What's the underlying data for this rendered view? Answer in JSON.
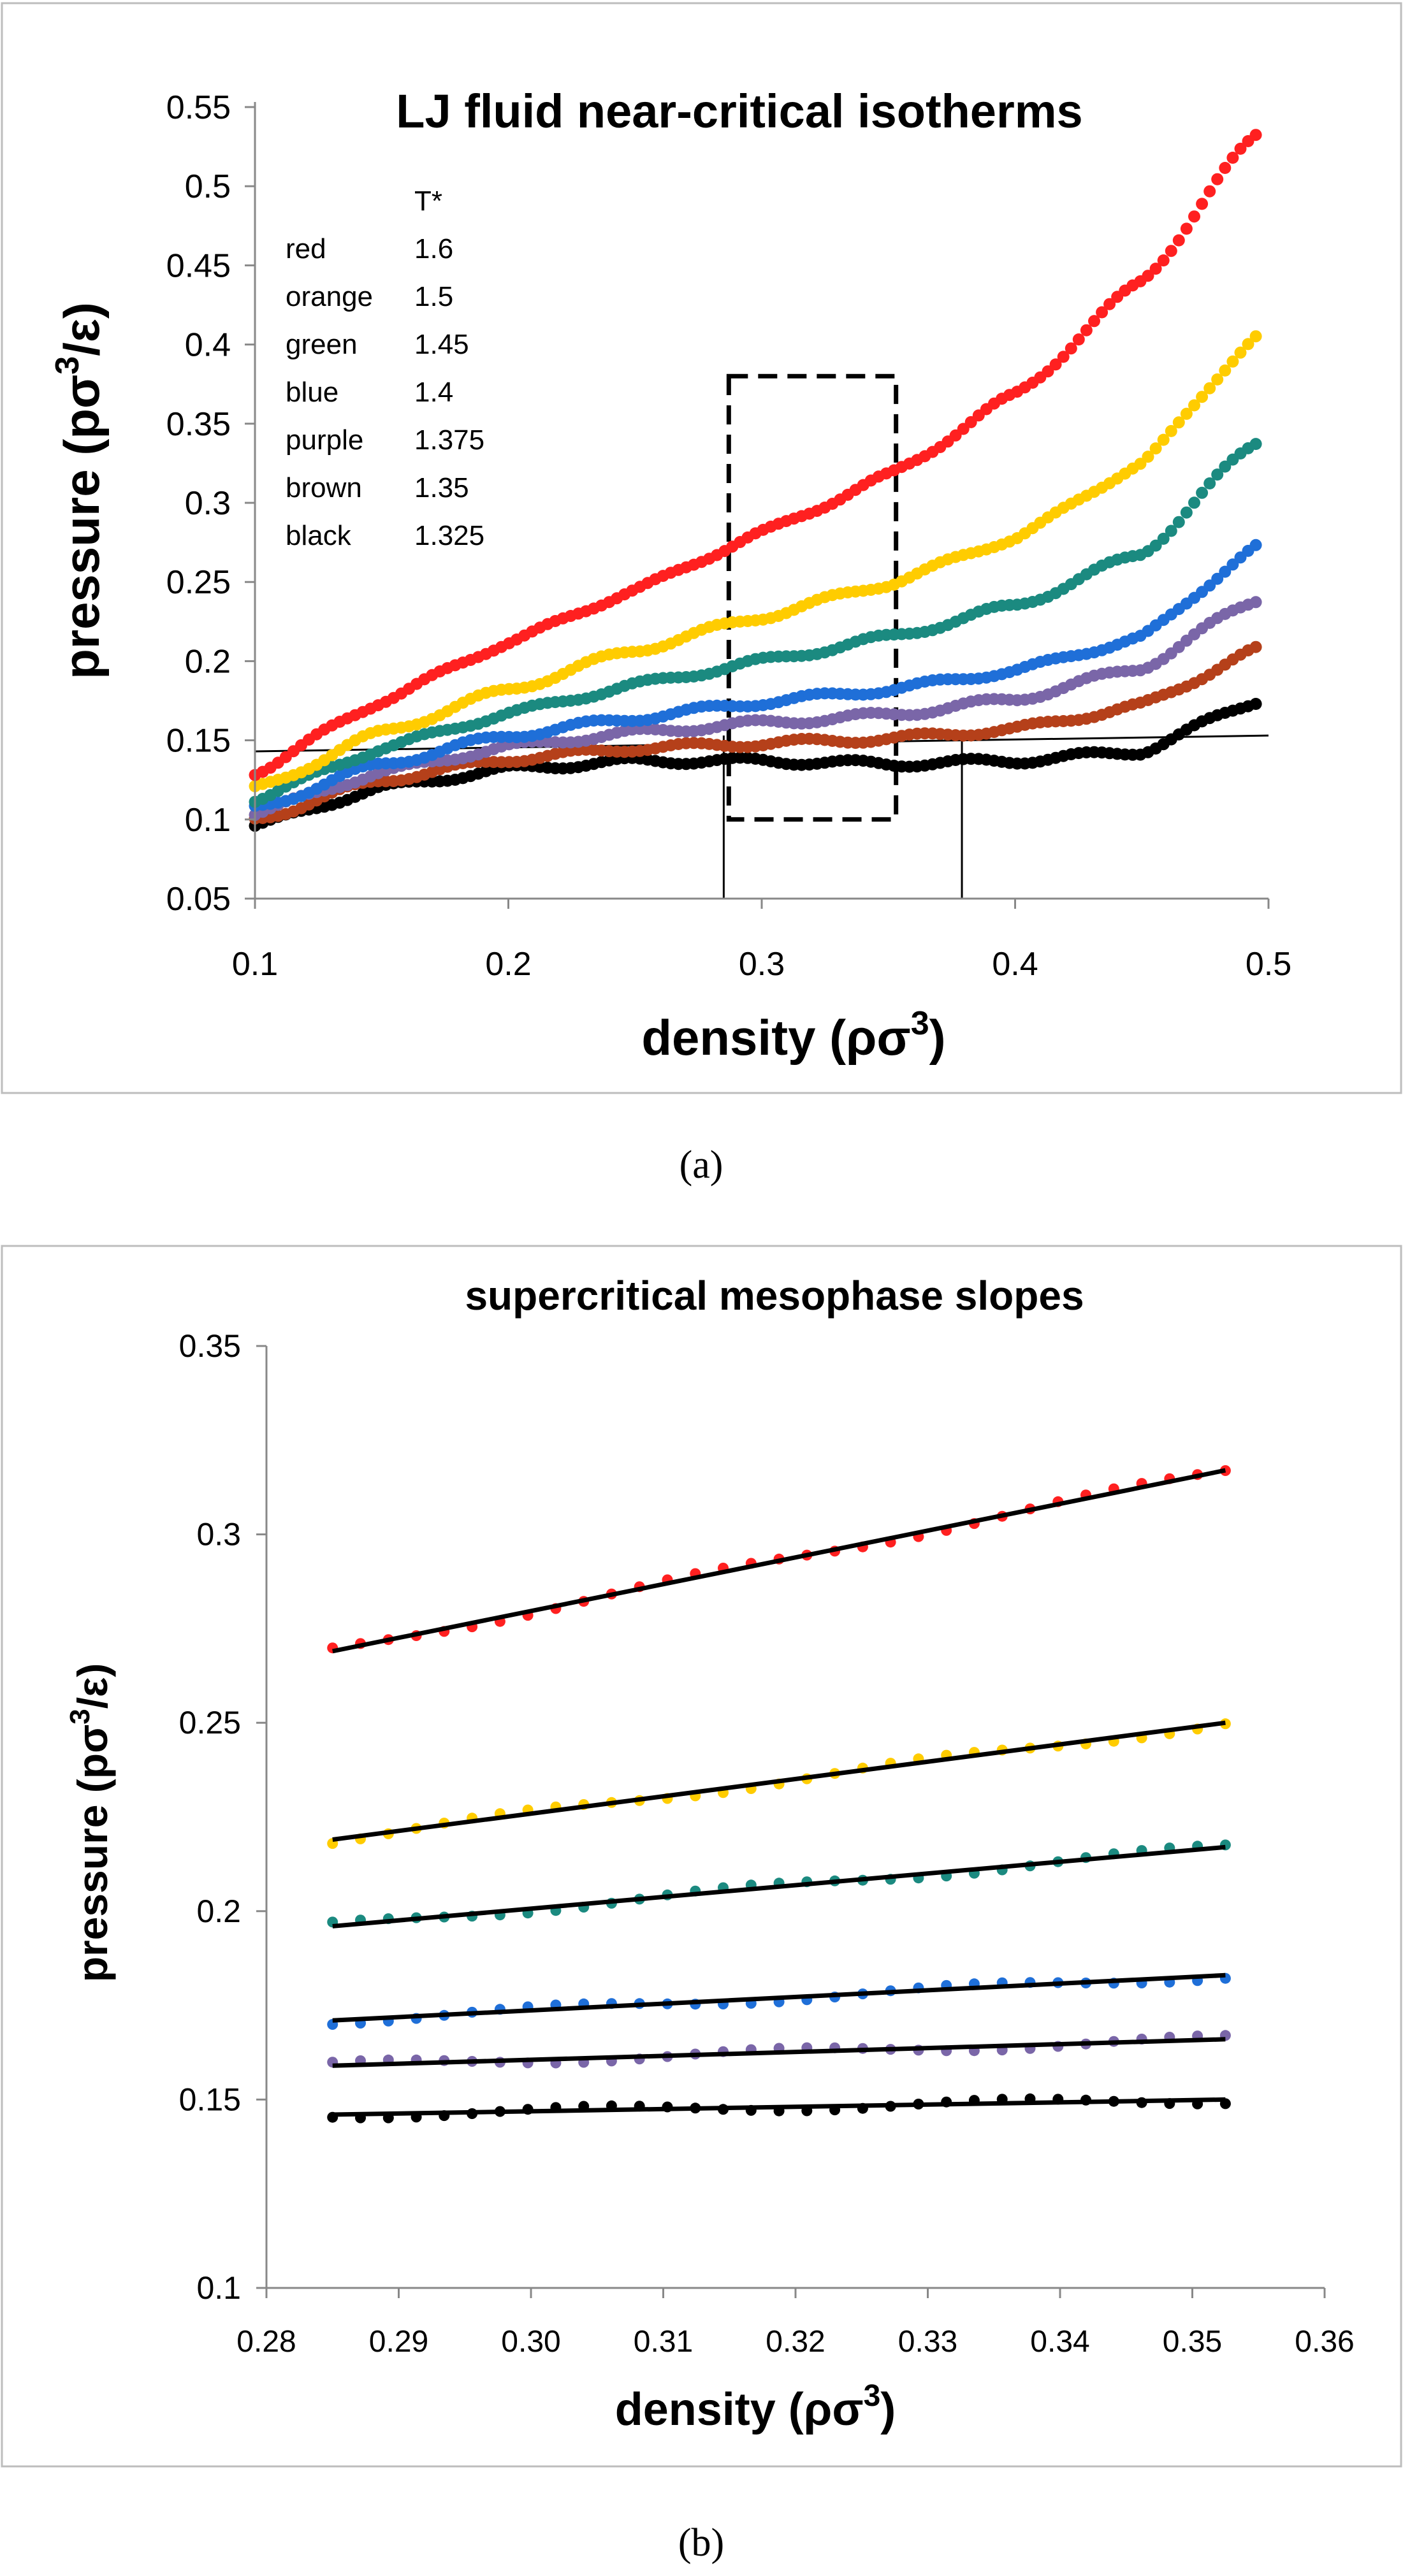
{
  "chart_data": [
    {
      "type": "scatter",
      "panel_label": "(a)",
      "title": "LJ fluid near-critical isotherms",
      "xlabel": "density (ρσ",
      "xlabel_sup": "3",
      "xlabel_end": ")",
      "ylabel": "pressure (pσ",
      "ylabel_sup": "3",
      "ylabel_end": "/ε)",
      "xlim": [
        0.1,
        0.5
      ],
      "ylim": [
        0.05,
        0.55
      ],
      "xticks": [
        "0.1",
        "0.2",
        "0.3",
        "0.4",
        "0.5"
      ],
      "yticks": [
        "0.05",
        "0.1",
        "0.15",
        "0.2",
        "0.25",
        "0.3",
        "0.35",
        "0.4",
        "0.45",
        "0.5",
        "0.55"
      ],
      "legend_header": "T*",
      "legend": [
        {
          "name": "red",
          "value": "1.6"
        },
        {
          "name": "orange",
          "value": "1.5"
        },
        {
          "name": "green",
          "value": "1.45"
        },
        {
          "name": "blue",
          "value": "1.4"
        },
        {
          "name": "purple",
          "value": "1.375"
        },
        {
          "name": "brown",
          "value": "1.35"
        },
        {
          "name": "black",
          "value": "1.325"
        }
      ],
      "series": [
        {
          "name": "red",
          "T": 1.6,
          "color": "#ff2020",
          "x": [
            0.1,
            0.15,
            0.2,
            0.25,
            0.3,
            0.35,
            0.4,
            0.45,
            0.495
          ],
          "y": [
            0.13,
            0.175,
            0.212,
            0.245,
            0.281,
            0.317,
            0.368,
            0.44,
            0.532
          ]
        },
        {
          "name": "orange",
          "T": 1.5,
          "color": "#ffcc00",
          "x": [
            0.1,
            0.15,
            0.2,
            0.25,
            0.3,
            0.35,
            0.4,
            0.45,
            0.495
          ],
          "y": [
            0.119,
            0.155,
            0.182,
            0.207,
            0.228,
            0.249,
            0.278,
            0.325,
            0.405
          ]
        },
        {
          "name": "green",
          "T": 1.45,
          "color": "#1b8a80",
          "x": [
            0.1,
            0.15,
            0.2,
            0.25,
            0.3,
            0.35,
            0.4,
            0.45,
            0.495
          ],
          "y": [
            0.113,
            0.145,
            0.167,
            0.185,
            0.2,
            0.215,
            0.235,
            0.268,
            0.338
          ]
        },
        {
          "name": "blue",
          "T": 1.4,
          "color": "#1f6fd8",
          "x": [
            0.1,
            0.15,
            0.2,
            0.25,
            0.3,
            0.35,
            0.4,
            0.45,
            0.495
          ],
          "y": [
            0.107,
            0.135,
            0.153,
            0.164,
            0.174,
            0.182,
            0.194,
            0.215,
            0.272
          ]
        },
        {
          "name": "purple",
          "T": 1.375,
          "color": "#7a66a8",
          "x": [
            0.1,
            0.15,
            0.2,
            0.25,
            0.3,
            0.35,
            0.4,
            0.45,
            0.495
          ],
          "y": [
            0.104,
            0.13,
            0.146,
            0.155,
            0.161,
            0.166,
            0.176,
            0.196,
            0.239
          ]
        },
        {
          "name": "brown",
          "T": 1.35,
          "color": "#b5401a",
          "x": [
            0.1,
            0.15,
            0.2,
            0.25,
            0.3,
            0.35,
            0.4,
            0.45,
            0.495
          ],
          "y": [
            0.1,
            0.125,
            0.138,
            0.145,
            0.148,
            0.151,
            0.157,
            0.172,
            0.207
          ]
        },
        {
          "name": "black",
          "T": 1.325,
          "color": "#000000",
          "x": [
            0.1,
            0.15,
            0.2,
            0.25,
            0.3,
            0.35,
            0.4,
            0.45,
            0.495
          ],
          "y": [
            0.096,
            0.12,
            0.132,
            0.137,
            0.137,
            0.135,
            0.137,
            0.143,
            0.175
          ]
        }
      ],
      "annotations": {
        "tie_line": {
          "x": [
            0.1,
            0.5
          ],
          "y": [
            0.143,
            0.153
          ]
        },
        "vertical_lines": [
          0.285,
          0.379
        ],
        "dashed_box": {
          "x": [
            0.287,
            0.353
          ],
          "y": [
            0.1,
            0.38
          ]
        }
      }
    },
    {
      "type": "scatter",
      "panel_label": "(b)",
      "title": "supercritical mesophase slopes",
      "xlabel": "density (ρσ",
      "xlabel_sup": "3",
      "xlabel_end": ")",
      "ylabel": "pressure (pσ",
      "ylabel_sup": "3",
      "ylabel_end": "/ε)",
      "xlim": [
        0.28,
        0.36
      ],
      "ylim": [
        0.1,
        0.35
      ],
      "xticks": [
        "0.28",
        "0.29",
        "0.30",
        "0.31",
        "0.32",
        "0.33",
        "0.34",
        "0.35",
        "0.36"
      ],
      "yticks": [
        "0.1",
        "0.15",
        "0.2",
        "0.25",
        "0.3",
        "0.35"
      ],
      "series": [
        {
          "name": "red",
          "color": "#ff2020",
          "fit": [
            0.269,
            0.317
          ]
        },
        {
          "name": "orange",
          "color": "#ffcc00",
          "fit": [
            0.219,
            0.25
          ]
        },
        {
          "name": "green",
          "color": "#1b8a80",
          "fit": [
            0.196,
            0.217
          ]
        },
        {
          "name": "blue",
          "color": "#1f6fd8",
          "fit": [
            0.171,
            0.183
          ]
        },
        {
          "name": "purple",
          "color": "#7a66a8",
          "fit": [
            0.159,
            0.166
          ]
        },
        {
          "name": "black",
          "color": "#000000",
          "fit": [
            0.146,
            0.15
          ]
        }
      ],
      "fit_x": [
        0.285,
        0.3525
      ]
    }
  ]
}
